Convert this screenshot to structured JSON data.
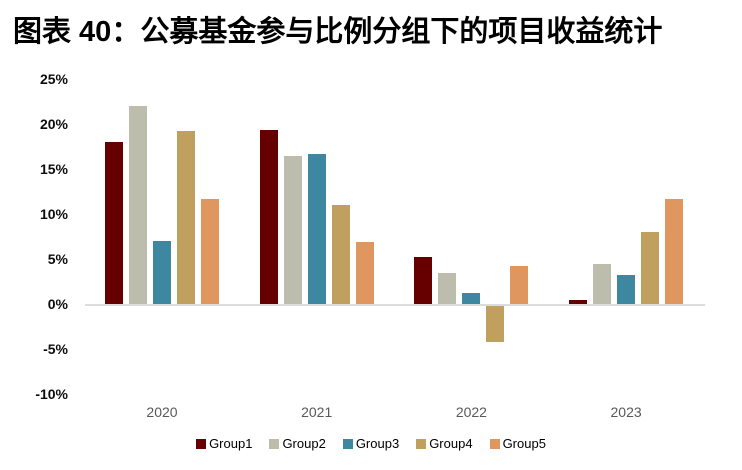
{
  "title": "图表 40：公募基金参与比例分组下的项目收益统计",
  "chart_data": {
    "type": "bar",
    "title": "图表 40：公募基金参与比例分组下的项目收益统计",
    "categories": [
      "2020",
      "2021",
      "2022",
      "2023"
    ],
    "series": [
      {
        "name": "Group1",
        "color": "#660000",
        "values": [
          18.0,
          19.3,
          5.2,
          0.5
        ]
      },
      {
        "name": "Group2",
        "color": "#bcbdad",
        "values": [
          22.0,
          16.5,
          3.5,
          4.5
        ]
      },
      {
        "name": "Group3",
        "color": "#3d88a0",
        "values": [
          7.0,
          16.7,
          1.2,
          3.2
        ]
      },
      {
        "name": "Group4",
        "color": "#c0a05e",
        "values": [
          19.2,
          11.0,
          -4.0,
          8.0
        ]
      },
      {
        "name": "Group5",
        "color": "#e0975f",
        "values": [
          11.7,
          6.9,
          4.2,
          11.7
        ]
      }
    ],
    "xlabel": "",
    "ylabel": "",
    "y_ticks": [
      "25%",
      "20%",
      "15%",
      "10%",
      "5%",
      "0%",
      "-5%",
      "-10%"
    ],
    "y_tick_values": [
      25,
      20,
      15,
      10,
      5,
      0,
      -5,
      -10
    ],
    "ylim": [
      -10,
      25
    ],
    "grid": false,
    "legend_position": "bottom",
    "axis_line_color": "#dcdcdc",
    "x_label_color": "#595959"
  }
}
